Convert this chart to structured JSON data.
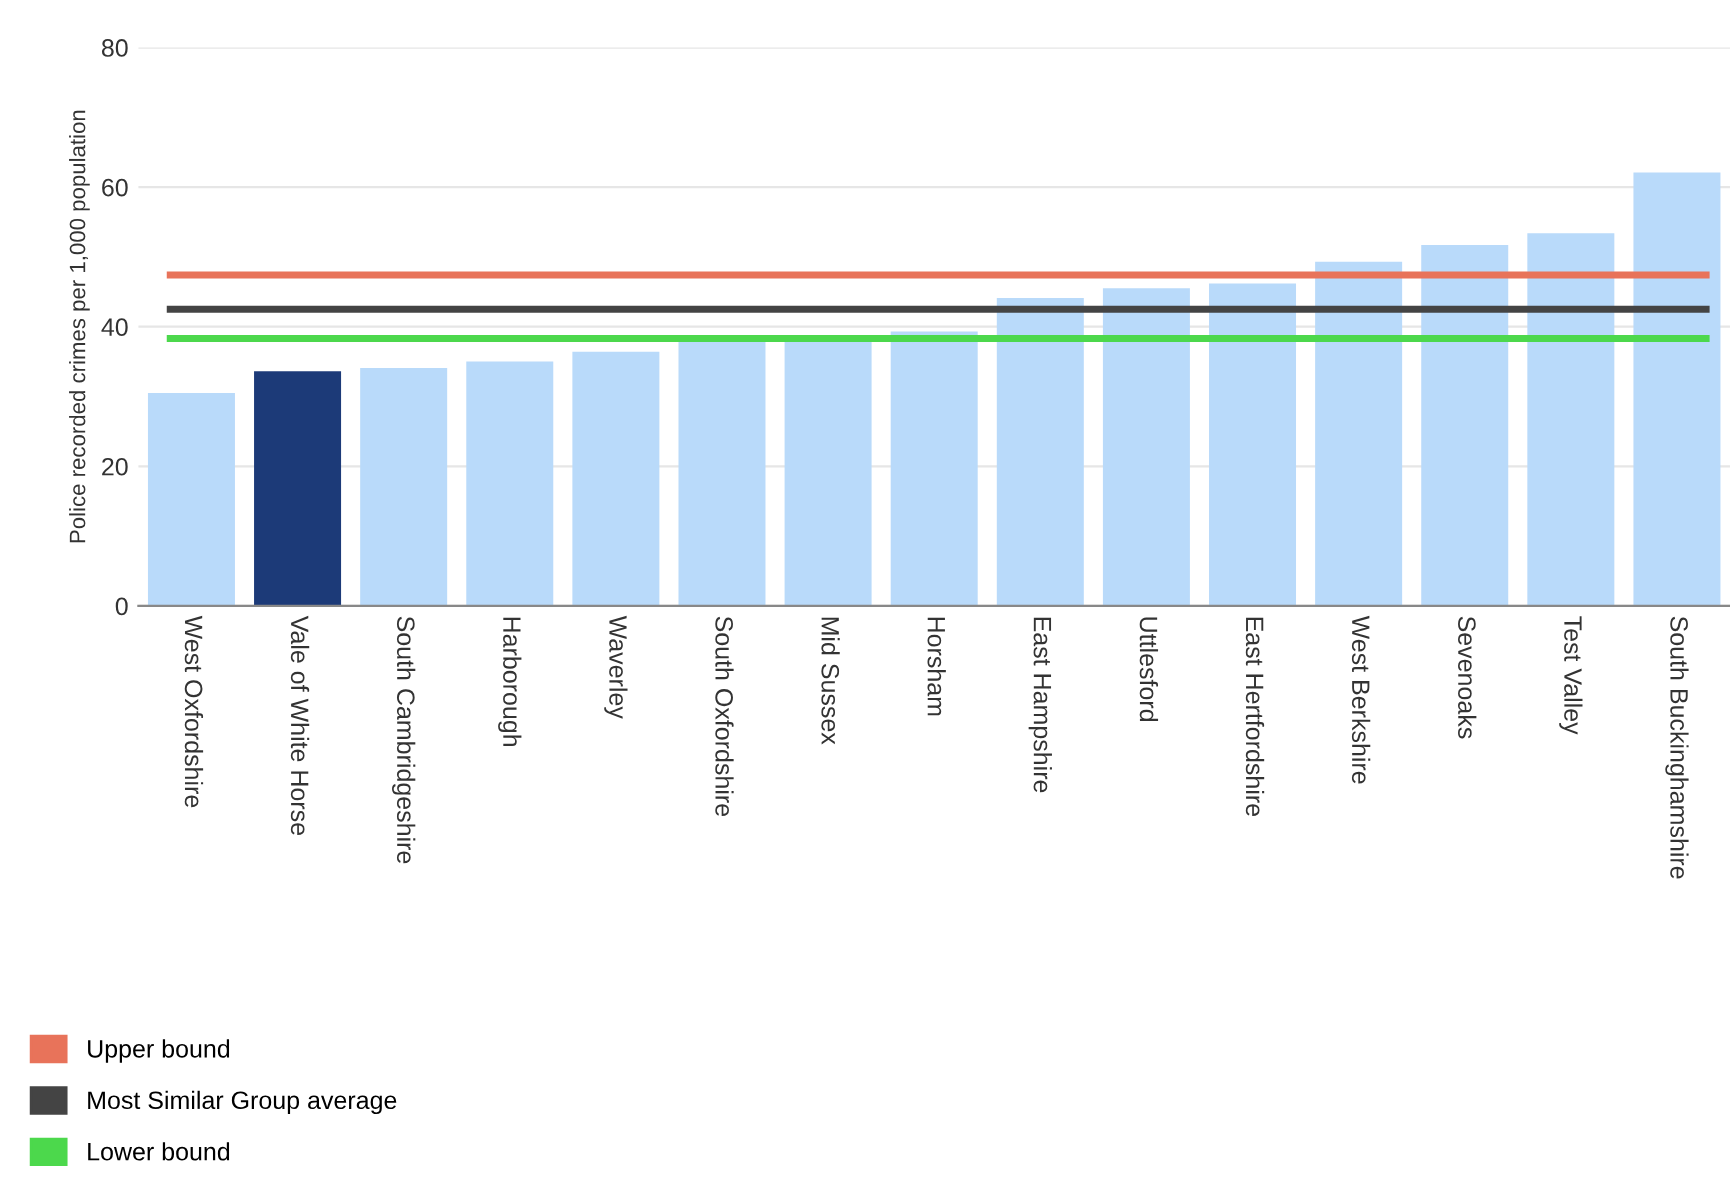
{
  "chart_data": {
    "type": "bar",
    "ylabel": "Police recorded crimes per 1,000 population",
    "categories": [
      "West Oxfordshire",
      "Vale of White Horse",
      "South Cambridgeshire",
      "Harborough",
      "Waverley",
      "South Oxfordshire",
      "Mid Sussex",
      "Horsham",
      "East Hampshire",
      "Uttlesford",
      "East Hertfordshire",
      "West Berkshire",
      "Sevenoaks",
      "Test Valley",
      "South Buckinghamshire"
    ],
    "values": [
      30.5,
      33.6,
      34.1,
      35.0,
      36.4,
      37.9,
      38.0,
      39.3,
      44.1,
      45.5,
      46.2,
      49.3,
      51.7,
      53.4,
      62.1
    ],
    "colors": [
      "#b9dafa",
      "#1c3a78",
      "#b9dafa",
      "#b9dafa",
      "#b9dafa",
      "#b9dafa",
      "#b9dafa",
      "#b9dafa",
      "#b9dafa",
      "#b9dafa",
      "#b9dafa",
      "#b9dafa",
      "#b9dafa",
      "#b9dafa",
      "#b9dafa"
    ],
    "ylim": [
      0,
      80
    ],
    "yticks": [
      0,
      20,
      40,
      60,
      80
    ],
    "grid": "y",
    "legend": "bottom left",
    "ref_lines": [
      {
        "axis": "y",
        "value": 47.4,
        "label": "Upper bound",
        "color": "#e8735a"
      },
      {
        "axis": "y",
        "value": 42.5,
        "label": "Most Similar Group average",
        "color": "#444444"
      },
      {
        "axis": "y",
        "value": 38.3,
        "label": "Lower bound",
        "color": "#4cd84c"
      }
    ]
  }
}
